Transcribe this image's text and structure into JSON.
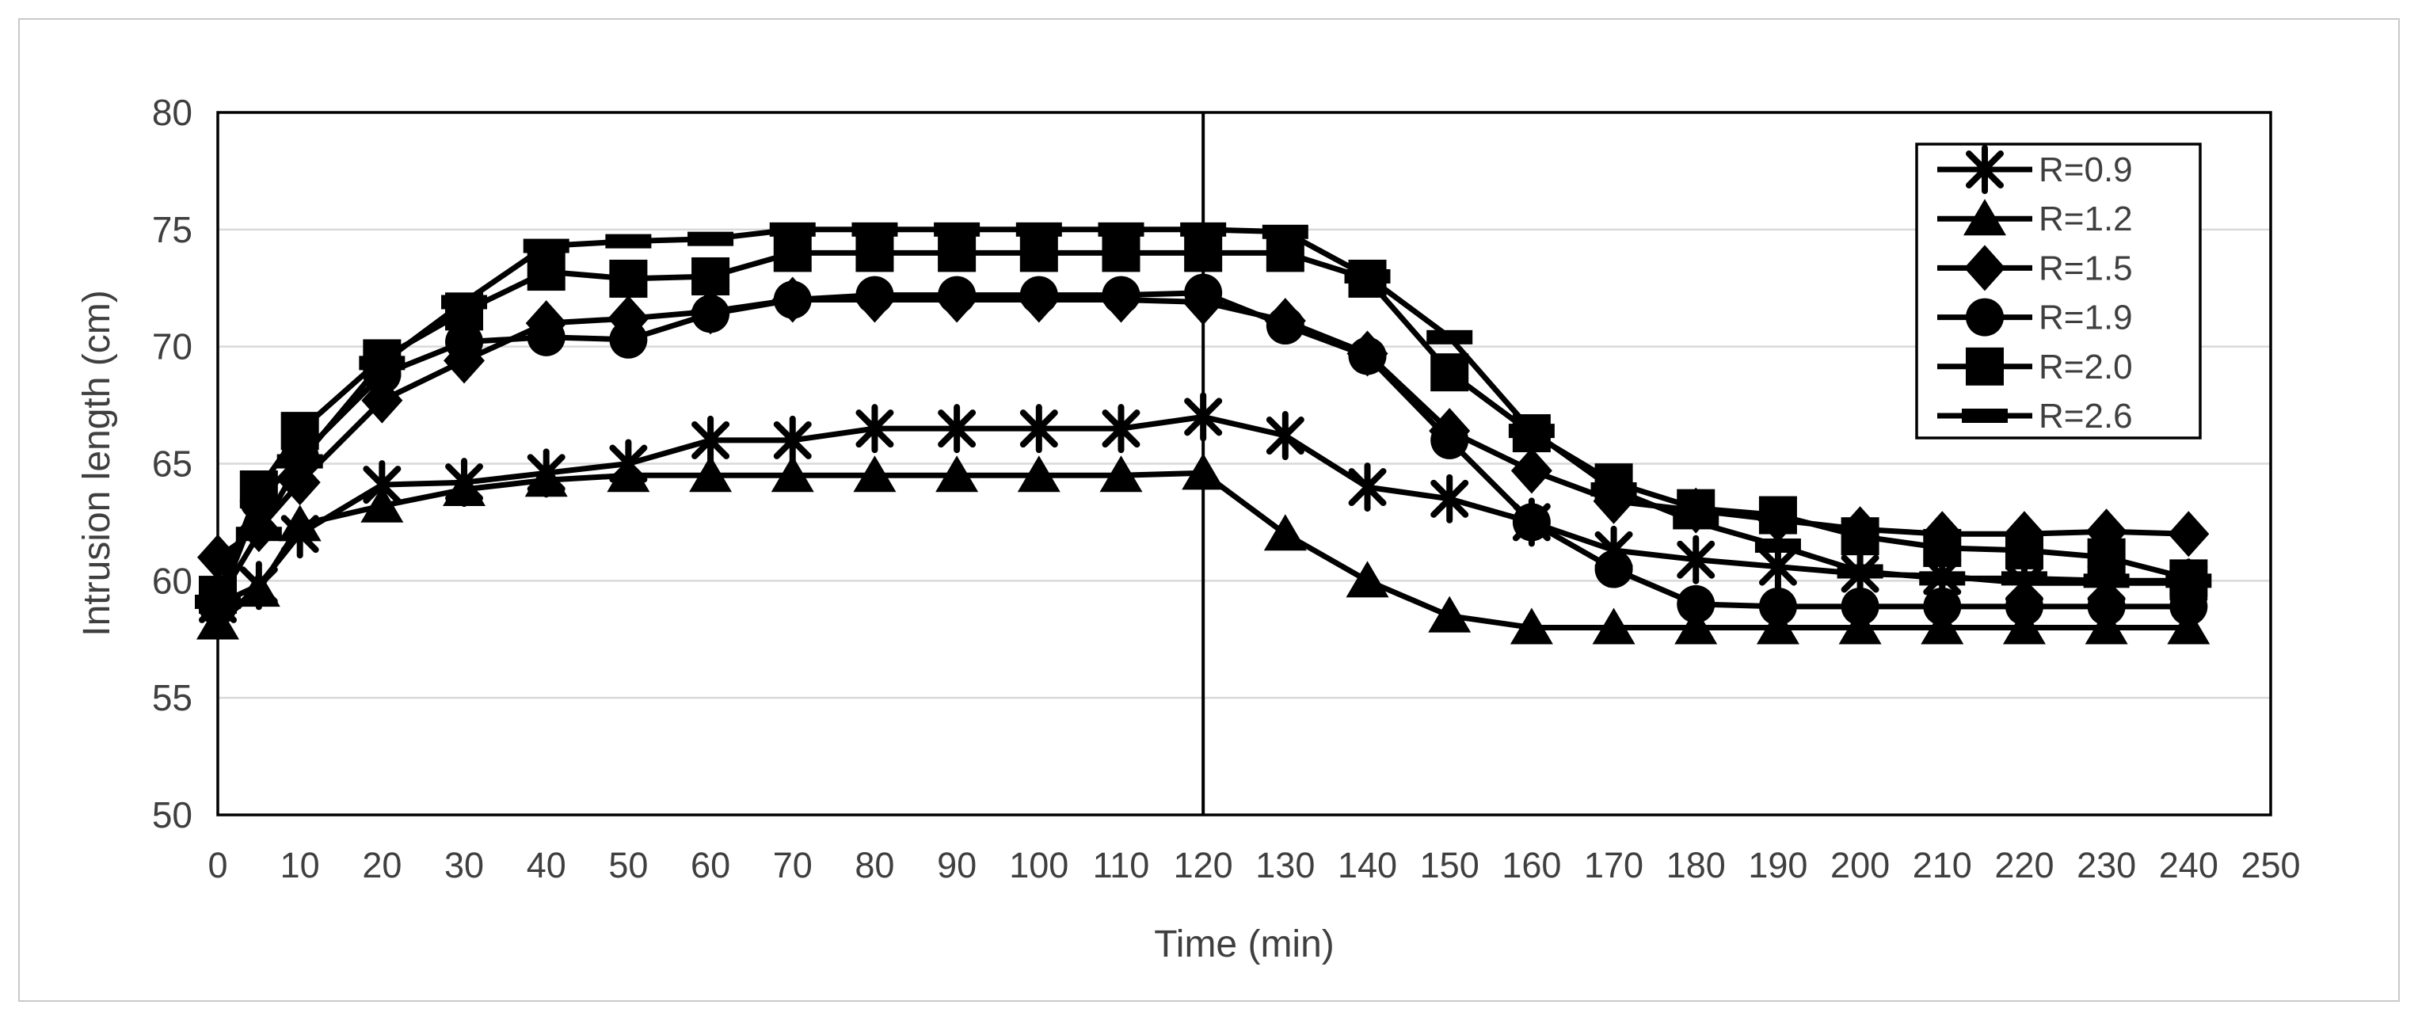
{
  "figure": {
    "background": "#ffffff",
    "outer_border_color": "#c9c9c9",
    "plot_border_color": "#000000",
    "gridline_color": "#d9d9d9",
    "series_color": "#000000",
    "tick_text_color": "#3f3f3f",
    "axis_title_color": "#3f3f3f"
  },
  "chart_data": {
    "type": "line",
    "title": "",
    "xlabel": "Time (min)",
    "ylabel": "Intrusion length (cm)",
    "xlim": [
      0,
      250
    ],
    "ylim": [
      50,
      80
    ],
    "x_ticks": [
      0,
      10,
      20,
      30,
      40,
      50,
      60,
      70,
      80,
      90,
      100,
      110,
      120,
      130,
      140,
      150,
      160,
      170,
      180,
      190,
      200,
      210,
      220,
      230,
      240,
      250
    ],
    "y_ticks": [
      50,
      55,
      60,
      65,
      70,
      75,
      80
    ],
    "grid": "horizontal",
    "reference_line_x": 120,
    "legend_position": "top-right",
    "x": [
      0,
      5,
      10,
      20,
      30,
      40,
      50,
      60,
      70,
      80,
      90,
      100,
      110,
      120,
      130,
      140,
      150,
      160,
      170,
      180,
      190,
      200,
      210,
      220,
      230,
      240
    ],
    "series": [
      {
        "name": "R=0.9",
        "marker": "asterisk",
        "values": [
          59.0,
          59.8,
          62.0,
          64.1,
          64.2,
          64.6,
          65.0,
          66.0,
          66.0,
          66.5,
          66.5,
          66.5,
          66.5,
          67.0,
          66.2,
          64.0,
          63.5,
          62.5,
          61.3,
          60.9,
          60.6,
          60.3,
          60.2,
          59.9,
          59.9,
          59.9
        ]
      },
      {
        "name": "R=1.2",
        "marker": "triangle",
        "values": [
          58.2,
          59.6,
          62.4,
          63.2,
          63.9,
          64.3,
          64.5,
          64.5,
          64.5,
          64.5,
          64.5,
          64.5,
          64.5,
          64.6,
          62.0,
          60.0,
          58.5,
          58.0,
          58.0,
          58.0,
          58.0,
          58.0,
          58.0,
          58.0,
          58.0,
          58.0
        ]
      },
      {
        "name": "R=1.5",
        "marker": "diamond",
        "values": [
          61.0,
          62.2,
          64.2,
          67.7,
          69.4,
          71.0,
          71.2,
          71.5,
          72.0,
          72.0,
          72.0,
          72.0,
          72.0,
          71.9,
          71.1,
          69.7,
          66.4,
          64.7,
          63.4,
          63.0,
          62.6,
          62.2,
          62.0,
          62.0,
          62.1,
          62.0
        ]
      },
      {
        "name": "R=1.9",
        "marker": "circle",
        "values": [
          58.9,
          63.4,
          65.3,
          68.8,
          70.2,
          70.4,
          70.3,
          71.4,
          72.0,
          72.2,
          72.2,
          72.2,
          72.2,
          72.3,
          70.9,
          69.6,
          66.0,
          62.5,
          60.5,
          59.0,
          58.9,
          58.9,
          58.9,
          58.9,
          58.9,
          58.9
        ]
      },
      {
        "name": "R=2.0",
        "marker": "square",
        "values": [
          59.4,
          63.9,
          66.4,
          69.5,
          71.5,
          73.2,
          72.9,
          73.0,
          74.0,
          74.0,
          74.0,
          74.0,
          74.0,
          74.0,
          74.0,
          72.9,
          68.9,
          66.3,
          64.2,
          63.1,
          62.8,
          61.9,
          61.4,
          61.3,
          61.0,
          60.1
        ]
      },
      {
        "name": "R=2.6",
        "marker": "dash",
        "values": [
          59.1,
          62.0,
          65.1,
          69.3,
          71.9,
          74.3,
          74.5,
          74.6,
          75.0,
          75.0,
          75.0,
          75.0,
          75.0,
          75.0,
          74.9,
          73.0,
          70.4,
          66.4,
          63.9,
          62.5,
          61.5,
          60.4,
          60.1,
          60.1,
          60.0,
          60.0
        ]
      }
    ]
  }
}
